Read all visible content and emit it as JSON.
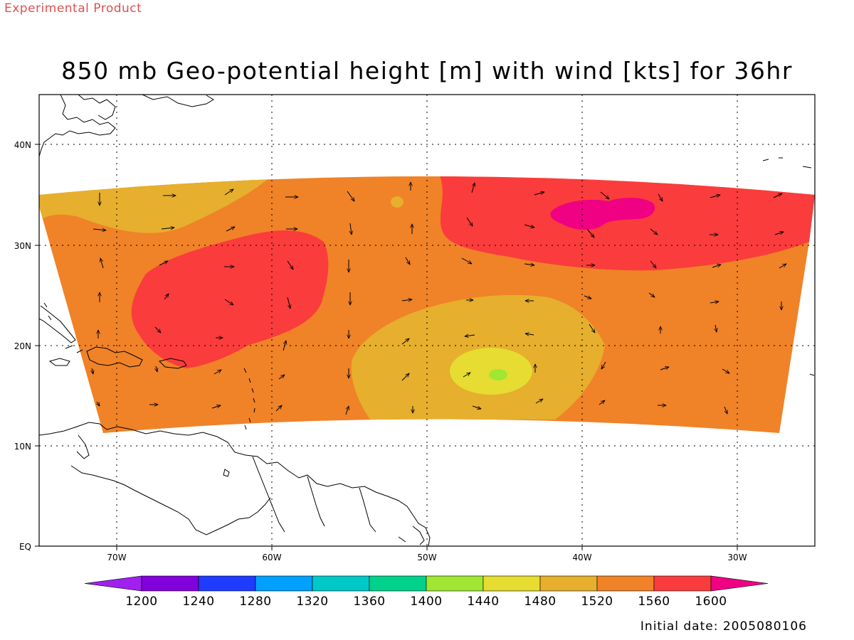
{
  "watermark": "Experimental Product",
  "title": "850 mb Geo-potential height [m] with wind [kts] for 36hr",
  "initial_date": "Initial date: 2005080106",
  "map": {
    "lat_labels": [
      "40N",
      "30N",
      "20N",
      "10N",
      "EQ"
    ],
    "lon_labels": [
      "70W",
      "60W",
      "50W",
      "40W",
      "30W"
    ]
  },
  "colorbar": {
    "labels": [
      "1200",
      "1240",
      "1280",
      "1320",
      "1360",
      "1400",
      "1440",
      "1480",
      "1520",
      "1560",
      "1600"
    ],
    "colors": [
      "#a020f0",
      "#8200dc",
      "#1e3cff",
      "#00a0ff",
      "#00c8c8",
      "#00d28c",
      "#a0e632",
      "#e6dc32",
      "#e6af2d",
      "#f08228",
      "#fa3c3c",
      "#f00082"
    ]
  },
  "fill_colors": {
    "c1480": "#e6dc32",
    "c1440": "#a0e632",
    "c1520": "#e6af2d",
    "c1560": "#f08228",
    "c1600": "#fa3c3c",
    "c1640": "#f00082"
  }
}
